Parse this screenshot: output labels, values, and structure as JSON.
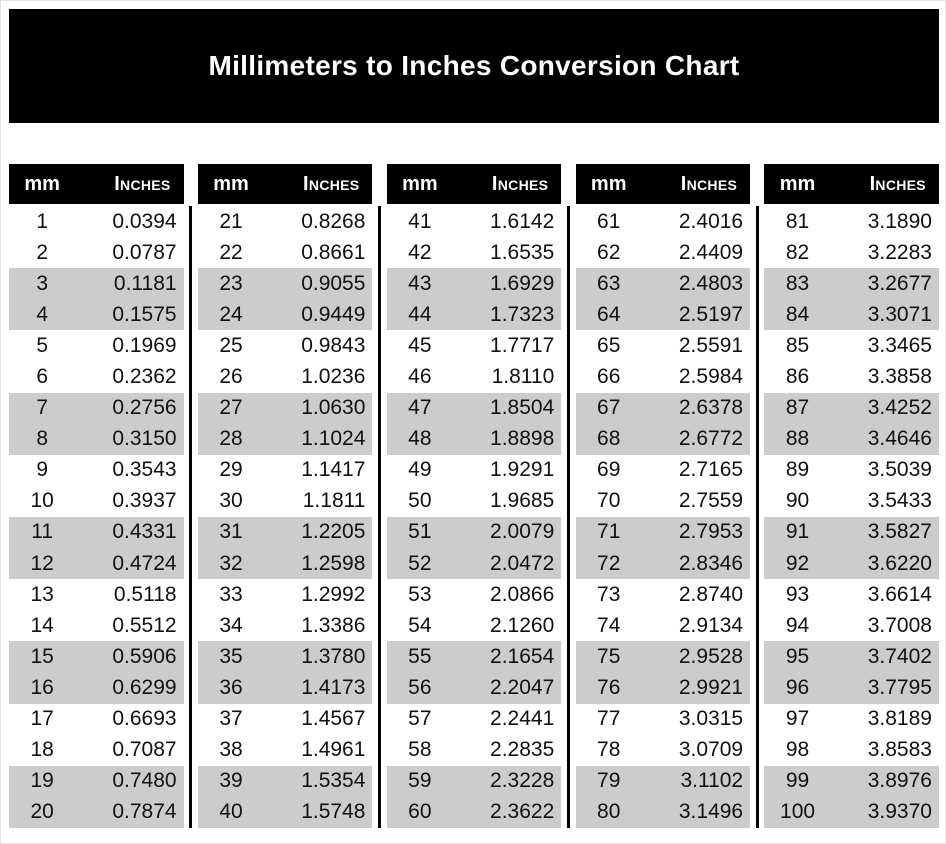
{
  "title": "Millimeters to Inches Conversion Chart",
  "column_headers": {
    "mm": "mm",
    "inches": "Inches"
  },
  "colors": {
    "banner_bg": "#000000",
    "banner_text": "#ffffff",
    "table_header_bg": "#000000",
    "table_header_text": "#ffffff",
    "shaded_row_bg": "#cccccc",
    "plain_row_bg": "#ffffff",
    "body_text": "#111111",
    "divider": "#000000"
  },
  "chart_data": {
    "type": "table",
    "title": "Millimeters to Inches Conversion Chart",
    "columns": [
      "mm",
      "Inches"
    ],
    "layout": "five side-by-side sub-tables, rows shaded in pairs, black vertical dividers between tables",
    "tables": [
      {
        "rows": [
          [
            1,
            "0.0394"
          ],
          [
            2,
            "0.0787"
          ],
          [
            3,
            "0.1181"
          ],
          [
            4,
            "0.1575"
          ],
          [
            5,
            "0.1969"
          ],
          [
            6,
            "0.2362"
          ],
          [
            7,
            "0.2756"
          ],
          [
            8,
            "0.3150"
          ],
          [
            9,
            "0.3543"
          ],
          [
            10,
            "0.3937"
          ],
          [
            11,
            "0.4331"
          ],
          [
            12,
            "0.4724"
          ],
          [
            13,
            "0.5118"
          ],
          [
            14,
            "0.5512"
          ],
          [
            15,
            "0.5906"
          ],
          [
            16,
            "0.6299"
          ],
          [
            17,
            "0.6693"
          ],
          [
            18,
            "0.7087"
          ],
          [
            19,
            "0.7480"
          ],
          [
            20,
            "0.7874"
          ]
        ]
      },
      {
        "rows": [
          [
            21,
            "0.8268"
          ],
          [
            22,
            "0.8661"
          ],
          [
            23,
            "0.9055"
          ],
          [
            24,
            "0.9449"
          ],
          [
            25,
            "0.9843"
          ],
          [
            26,
            "1.0236"
          ],
          [
            27,
            "1.0630"
          ],
          [
            28,
            "1.1024"
          ],
          [
            29,
            "1.1417"
          ],
          [
            30,
            "1.1811"
          ],
          [
            31,
            "1.2205"
          ],
          [
            32,
            "1.2598"
          ],
          [
            33,
            "1.2992"
          ],
          [
            34,
            "1.3386"
          ],
          [
            35,
            "1.3780"
          ],
          [
            36,
            "1.4173"
          ],
          [
            37,
            "1.4567"
          ],
          [
            38,
            "1.4961"
          ],
          [
            39,
            "1.5354"
          ],
          [
            40,
            "1.5748"
          ]
        ]
      },
      {
        "rows": [
          [
            41,
            "1.6142"
          ],
          [
            42,
            "1.6535"
          ],
          [
            43,
            "1.6929"
          ],
          [
            44,
            "1.7323"
          ],
          [
            45,
            "1.7717"
          ],
          [
            46,
            "1.8110"
          ],
          [
            47,
            "1.8504"
          ],
          [
            48,
            "1.8898"
          ],
          [
            49,
            "1.9291"
          ],
          [
            50,
            "1.9685"
          ],
          [
            51,
            "2.0079"
          ],
          [
            52,
            "2.0472"
          ],
          [
            53,
            "2.0866"
          ],
          [
            54,
            "2.1260"
          ],
          [
            55,
            "2.1654"
          ],
          [
            56,
            "2.2047"
          ],
          [
            57,
            "2.2441"
          ],
          [
            58,
            "2.2835"
          ],
          [
            59,
            "2.3228"
          ],
          [
            60,
            "2.3622"
          ]
        ]
      },
      {
        "rows": [
          [
            61,
            "2.4016"
          ],
          [
            62,
            "2.4409"
          ],
          [
            63,
            "2.4803"
          ],
          [
            64,
            "2.5197"
          ],
          [
            65,
            "2.5591"
          ],
          [
            66,
            "2.5984"
          ],
          [
            67,
            "2.6378"
          ],
          [
            68,
            "2.6772"
          ],
          [
            69,
            "2.7165"
          ],
          [
            70,
            "2.7559"
          ],
          [
            71,
            "2.7953"
          ],
          [
            72,
            "2.8346"
          ],
          [
            73,
            "2.8740"
          ],
          [
            74,
            "2.9134"
          ],
          [
            75,
            "2.9528"
          ],
          [
            76,
            "2.9921"
          ],
          [
            77,
            "3.0315"
          ],
          [
            78,
            "3.0709"
          ],
          [
            79,
            "3.1102"
          ],
          [
            80,
            "3.1496"
          ]
        ]
      },
      {
        "rows": [
          [
            81,
            "3.1890"
          ],
          [
            82,
            "3.2283"
          ],
          [
            83,
            "3.2677"
          ],
          [
            84,
            "3.3071"
          ],
          [
            85,
            "3.3465"
          ],
          [
            86,
            "3.3858"
          ],
          [
            87,
            "3.4252"
          ],
          [
            88,
            "3.4646"
          ],
          [
            89,
            "3.5039"
          ],
          [
            90,
            "3.5433"
          ],
          [
            91,
            "3.5827"
          ],
          [
            92,
            "3.6220"
          ],
          [
            93,
            "3.6614"
          ],
          [
            94,
            "3.7008"
          ],
          [
            95,
            "3.7402"
          ],
          [
            96,
            "3.7795"
          ],
          [
            97,
            "3.8189"
          ],
          [
            98,
            "3.8583"
          ],
          [
            99,
            "3.8976"
          ],
          [
            100,
            "3.9370"
          ]
        ]
      }
    ]
  }
}
